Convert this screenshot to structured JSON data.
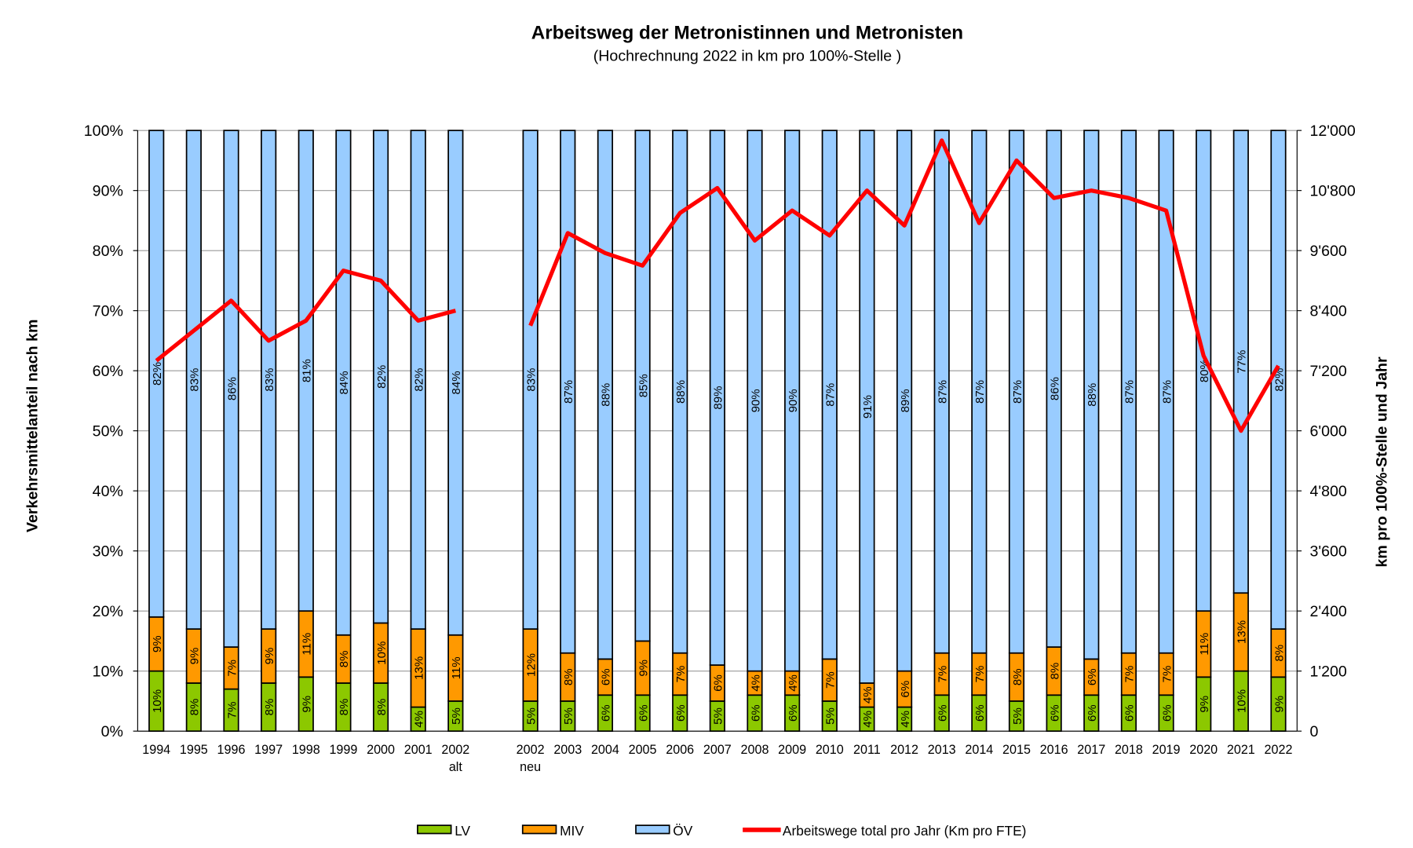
{
  "chart_data": {
    "type": "bar",
    "stacked": true,
    "title": "Arbeitsweg der Metronistinnen und Metronisten",
    "subtitle": "(Hochrechnung 2022 in km pro 100%-Stelle )",
    "ylabel": "Verkehrsmittelanteil nach km",
    "y2label": "km pro 100%-Stelle und Jahr",
    "ylim": [
      0,
      100
    ],
    "y2lim": [
      0,
      12000
    ],
    "yticks": [
      "0%",
      "10%",
      "20%",
      "30%",
      "40%",
      "50%",
      "60%",
      "70%",
      "80%",
      "90%",
      "100%"
    ],
    "y2ticks": [
      "0",
      "1'200",
      "2'400",
      "3'600",
      "4'800",
      "6'000",
      "7'200",
      "8'400",
      "9'600",
      "10'800",
      "12'000"
    ],
    "grid": true,
    "legend_position": "bottom",
    "categories": [
      "1994",
      "1995",
      "1996",
      "1997",
      "1998",
      "1999",
      "2000",
      "2001",
      "2002 alt",
      "",
      "2002 neu",
      "2003",
      "2004",
      "2005",
      "2006",
      "2007",
      "2008",
      "2009",
      "2010",
      "2011",
      "2012",
      "2013",
      "2014",
      "2015",
      "2016",
      "2017",
      "2018",
      "2019",
      "2020",
      "2021",
      "2022"
    ],
    "series": [
      {
        "name": "LV",
        "kind": "bar",
        "color": "#8CC800",
        "values": [
          10,
          8,
          7,
          8,
          9,
          8,
          8,
          4,
          5,
          null,
          5,
          5,
          6,
          6,
          6,
          5,
          6,
          6,
          5,
          4,
          4,
          6,
          6,
          5,
          6,
          6,
          6,
          6,
          9,
          10,
          9
        ]
      },
      {
        "name": "MIV",
        "kind": "bar",
        "color": "#FF9900",
        "values": [
          9,
          9,
          7,
          9,
          11,
          8,
          10,
          13,
          11,
          null,
          12,
          8,
          6,
          9,
          7,
          6,
          4,
          4,
          7,
          4,
          6,
          7,
          7,
          8,
          8,
          6,
          7,
          7,
          11,
          13,
          8
        ]
      },
      {
        "name": "ÖV",
        "kind": "bar",
        "color": "#99CCFF",
        "values": [
          82,
          83,
          86,
          83,
          81,
          84,
          82,
          82,
          84,
          null,
          83,
          87,
          88,
          85,
          88,
          89,
          90,
          90,
          87,
          91,
          89,
          87,
          87,
          87,
          86,
          88,
          87,
          87,
          80,
          77,
          82
        ]
      },
      {
        "name": "Arbeitswege total pro Jahr (Km pro FTE)",
        "kind": "line",
        "axis": "right",
        "color": "#FF0000",
        "values": [
          7400,
          8000,
          8600,
          7800,
          8200,
          9200,
          9000,
          8200,
          8400,
          null,
          8100,
          9950,
          9550,
          9300,
          10350,
          10850,
          9800,
          10400,
          9900,
          10800,
          10100,
          11800,
          10150,
          11400,
          10650,
          10800,
          10650,
          10400,
          7500,
          6000,
          7300
        ]
      }
    ]
  }
}
